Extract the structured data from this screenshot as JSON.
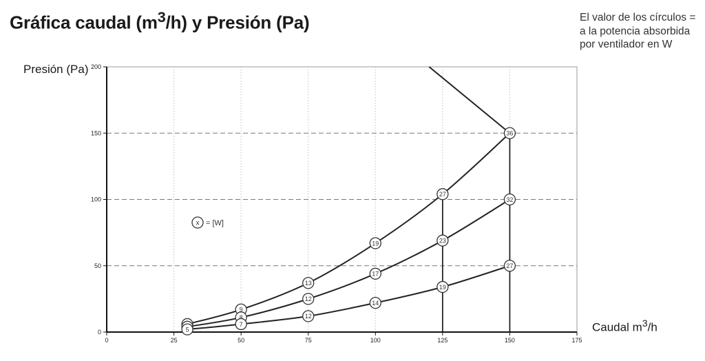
{
  "title_parts": {
    "before": "Gráfica caudal (m",
    "sup": "3",
    "after": "/h) y Presión (Pa)"
  },
  "note_lines": [
    "El valor de los círculos =",
    "a la potencia absorbida",
    "por ventilador en W"
  ],
  "ylabel": "Presión (Pa)",
  "xlabel_parts": {
    "before": "Caudal m",
    "sup": "3",
    "after": "/h"
  },
  "legend_symbol": {
    "circle": "x",
    "text": "= [W]"
  },
  "chart_data": {
    "type": "line",
    "xlim": [
      0,
      175
    ],
    "ylim": [
      0,
      200
    ],
    "x_ticks": [
      0,
      25,
      50,
      75,
      100,
      125,
      150,
      175
    ],
    "y_ticks": [
      0,
      50,
      100,
      150,
      200
    ],
    "grid": {
      "x": "dotted",
      "y": "dashed"
    },
    "series": [
      {
        "points": [
          {
            "x": 30,
            "y": 6,
            "label": "9"
          },
          {
            "x": 50,
            "y": 17,
            "label": "9"
          },
          {
            "x": 75,
            "y": 37,
            "label": "13"
          },
          {
            "x": 100,
            "y": 67,
            "label": "19"
          },
          {
            "x": 125,
            "y": 104,
            "label": "27"
          },
          {
            "x": 150,
            "y": 150,
            "label": "36"
          }
        ]
      },
      {
        "points": [
          {
            "x": 30,
            "y": 4,
            "label": "7"
          },
          {
            "x": 50,
            "y": 11,
            "label": "8"
          },
          {
            "x": 75,
            "y": 25,
            "label": "12"
          },
          {
            "x": 100,
            "y": 44,
            "label": "17"
          },
          {
            "x": 125,
            "y": 69,
            "label": "23"
          },
          {
            "x": 150,
            "y": 100,
            "label": "32"
          }
        ]
      },
      {
        "points": [
          {
            "x": 30,
            "y": 2,
            "label": "5"
          },
          {
            "x": 50,
            "y": 6,
            "label": "7"
          },
          {
            "x": 75,
            "y": 12,
            "label": "12"
          },
          {
            "x": 100,
            "y": 22,
            "label": "14"
          },
          {
            "x": 125,
            "y": 34,
            "label": "19"
          },
          {
            "x": 150,
            "y": 50,
            "label": "27"
          }
        ]
      }
    ],
    "system_line": [
      {
        "x": 120,
        "y": 200
      },
      {
        "x": 150,
        "y": 150
      }
    ],
    "vertical_lines": [
      {
        "x": 125,
        "y_from": 0,
        "y_to": 104
      },
      {
        "x": 150,
        "y_from": 0,
        "y_to": 150
      }
    ]
  }
}
